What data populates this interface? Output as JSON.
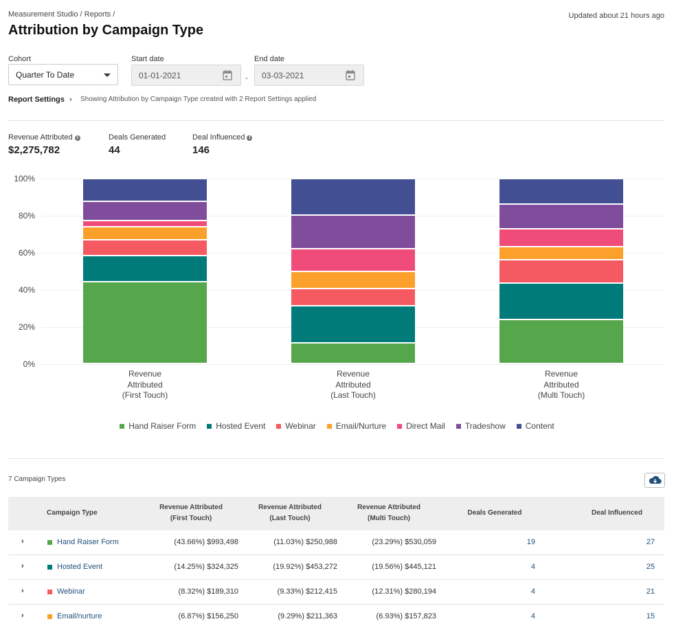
{
  "header": {
    "breadcrumb": "Measurement Studio / Reports /",
    "title": "Attribution by Campaign Type",
    "updated": "Updated about 21 hours ago"
  },
  "filters": {
    "cohort_label": "Cohort",
    "cohort_value": "Quarter To Date",
    "start_label": "Start date",
    "start_value": "01-01-2021",
    "end_label": "End date",
    "end_value": "03-03-2021",
    "separator": "-"
  },
  "settings": {
    "label": "Report Settings",
    "note": "Showing Attribution by Campaign Type created with 2 Report Settings applied"
  },
  "metrics": [
    {
      "label": "Revenue Attributed",
      "value": "$2,275,782"
    },
    {
      "label": "Deals Generated",
      "value": "44"
    },
    {
      "label": "Deal Influenced",
      "value": "146"
    }
  ],
  "chart_data": {
    "type": "bar",
    "stacked": true,
    "normalized": true,
    "categories": [
      [
        "Revenue",
        "Attributed",
        "(First Touch)"
      ],
      [
        "Revenue",
        "Attributed",
        "(Last Touch)"
      ],
      [
        "Revenue",
        "Attributed",
        "(Multi Touch)"
      ]
    ],
    "y_ticks": [
      "100%",
      "80%",
      "60%",
      "40%",
      "20%",
      "0%"
    ],
    "ylim": [
      0,
      100
    ],
    "series": [
      {
        "name": "Hand Raiser Form",
        "color": "#56a74b",
        "values": [
          43.66,
          11.03,
          23.29
        ]
      },
      {
        "name": "Hosted Event",
        "color": "#007b79",
        "values": [
          14.25,
          19.92,
          19.56
        ]
      },
      {
        "name": "Webinar",
        "color": "#f55a62",
        "values": [
          8.32,
          9.33,
          12.31
        ]
      },
      {
        "name": "Email/Nurture",
        "color": "#fba12b",
        "values": [
          6.87,
          9.29,
          6.93
        ]
      },
      {
        "name": "Direct Mail",
        "color": "#ef4c7a",
        "values": [
          3.4,
          12.0,
          9.5
        ]
      },
      {
        "name": "Tradeshow",
        "color": "#7f4d9b",
        "values": [
          10.4,
          18.0,
          13.4
        ]
      },
      {
        "name": "Content",
        "color": "#434f93",
        "values": [
          12.1,
          19.6,
          13.5
        ]
      }
    ]
  },
  "table": {
    "count_label": "7 Campaign Types",
    "headers": [
      "Campaign Type",
      "Revenue Attributed\n(First Touch)",
      "Revenue Attributed\n(Last Touch)",
      "Revenue Attributed\n(Multi Touch)",
      "Deals Generated",
      "Deal Influenced"
    ],
    "rows": [
      {
        "name": "Hand Raiser Form",
        "color": "#56a74b",
        "ft": "(43.66%) $993,498",
        "lt": "(11.03%) $250,988",
        "mt": "(23.29%) $530,059",
        "deals": "19",
        "influenced": "27"
      },
      {
        "name": "Hosted Event",
        "color": "#007b79",
        "ft": "(14.25%) $324,325",
        "lt": "(19.92%) $453,272",
        "mt": "(19.56%) $445,121",
        "deals": "4",
        "influenced": "25"
      },
      {
        "name": "Webinar",
        "color": "#f55a62",
        "ft": "(8.32%) $189,310",
        "lt": "(9.33%) $212,415",
        "mt": "(12.31%) $280,194",
        "deals": "4",
        "influenced": "21"
      },
      {
        "name": "Email/nurture",
        "color": "#fba12b",
        "ft": "(6.87%) $156,250",
        "lt": "(9.29%) $211,363",
        "mt": "(6.93%) $157,823",
        "deals": "4",
        "influenced": "15"
      }
    ]
  }
}
